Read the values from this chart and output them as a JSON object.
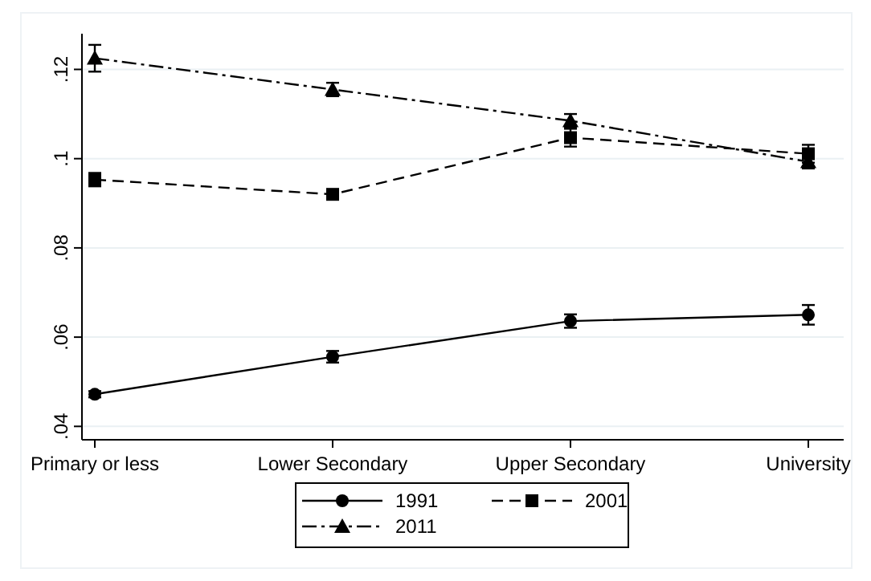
{
  "chart_data": {
    "type": "line",
    "categories": [
      "Primary or less",
      "Lower Secondary",
      "Upper Secondary",
      "University"
    ],
    "series": [
      {
        "name": "1991",
        "color": "#000000",
        "marker": "circle",
        "line_style": "solid",
        "values": [
          0.0472,
          0.0556,
          0.0636,
          0.065
        ],
        "errors": [
          0.0007,
          0.0013,
          0.0015,
          0.0022
        ]
      },
      {
        "name": "2001",
        "color": "#000000",
        "marker": "square",
        "line_style": "dashed",
        "values": [
          0.0953,
          0.092,
          0.1047,
          0.1011
        ],
        "errors": [
          0.0015,
          0.001,
          0.002,
          0.002
        ]
      },
      {
        "name": "2011",
        "color": "#000000",
        "marker": "triangle",
        "line_style": "dashdot",
        "values": [
          0.1225,
          0.1155,
          0.1085,
          0.0993
        ],
        "errors": [
          0.003,
          0.0015,
          0.0015,
          0.0015
        ]
      }
    ],
    "ylim": [
      0.037,
      0.128
    ],
    "yticks": [
      {
        "value": 0.04,
        "label": ".04"
      },
      {
        "value": 0.06,
        "label": ".06"
      },
      {
        "value": 0.08,
        "label": ".08"
      },
      {
        "value": 0.1,
        "label": ".1"
      },
      {
        "value": 0.12,
        "label": ".12"
      }
    ],
    "grid": "y",
    "legend": "bottom"
  }
}
